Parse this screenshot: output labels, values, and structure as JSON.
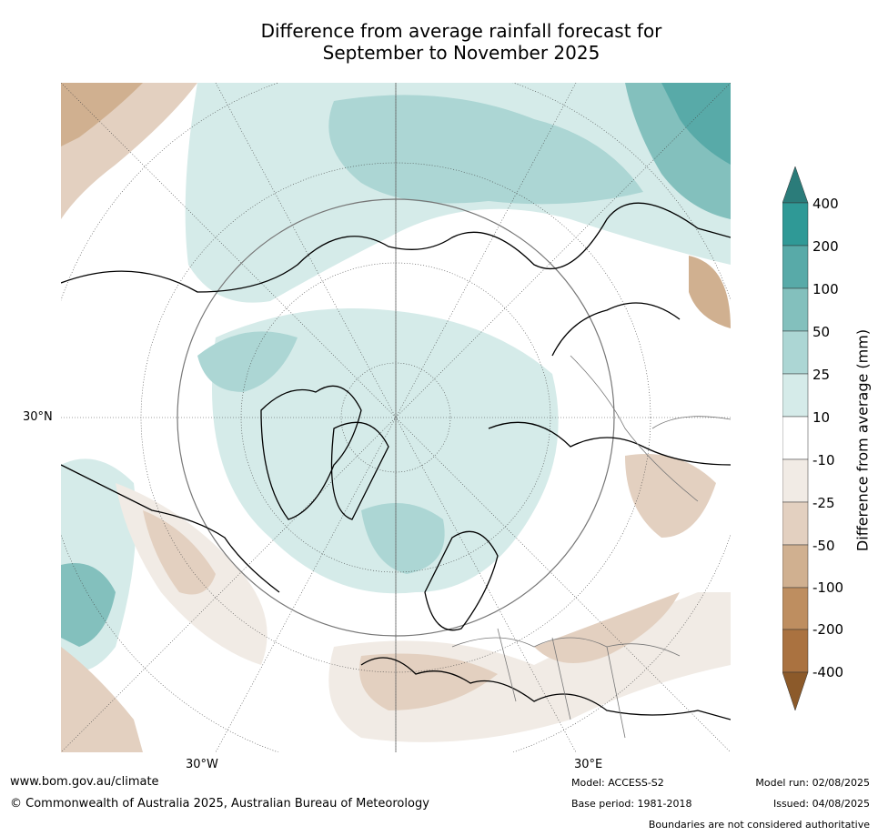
{
  "title": {
    "line1": "Difference from average rainfall forecast for",
    "line2": "September to November 2025"
  },
  "map": {
    "projection": "north-polar-stereographic",
    "lat_labels": [
      "30°N"
    ],
    "lon_labels": [
      "30°W",
      "30°E"
    ]
  },
  "colorbar": {
    "title": "Difference from average (mm)",
    "ticks": [
      "400",
      "200",
      "100",
      "50",
      "25",
      "10",
      "-10",
      "-25",
      "-50",
      "-100",
      "-200",
      "-400"
    ],
    "colors": {
      "over": "#2b7c7a",
      "200_400": "#2f9996",
      "100_200": "#58aaa8",
      "50_100": "#83c0bd",
      "25_50": "#acd6d4",
      "10_25": "#d5ebe9",
      "neutral": "#ffffff",
      "m10_m25": "#f1ebe5",
      "m25_m50": "#e3d0c0",
      "m50_m100": "#d0b090",
      "m100_m200": "#be8e60",
      "m200_m400": "#aa7240",
      "under": "#8c5a2a"
    }
  },
  "footer": {
    "website": "www.bom.gov.au/climate",
    "copyright": "© Commonwealth of Australia 2025, Australian Bureau of Meteorology",
    "model": "Model: ACCESS-S2",
    "base_period": "Base period: 1981-2018",
    "model_run": "Model run: 02/08/2025",
    "issued": "Issued: 04/08/2025",
    "disclaimer": "Boundaries are not considered authoritative"
  }
}
